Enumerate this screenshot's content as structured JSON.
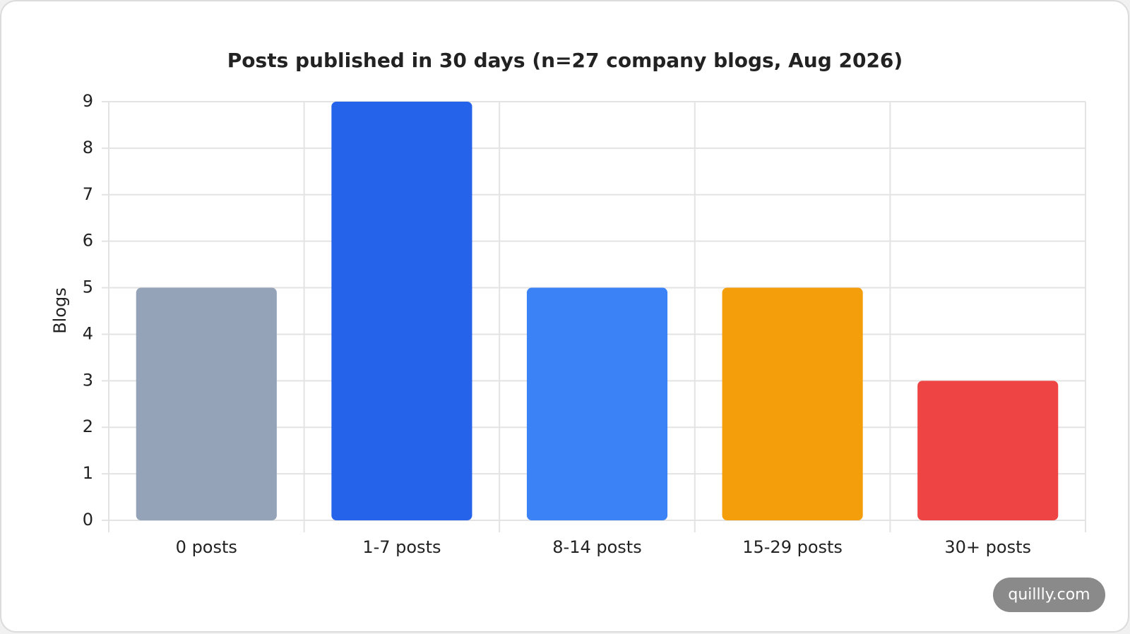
{
  "chart_data": {
    "type": "bar",
    "title": "Posts published in 30 days (n=27 company blogs, Aug 2026)",
    "y_label": "Blogs",
    "categories": [
      "0 posts",
      "1-7 posts",
      "8-14 posts",
      "15-29 posts",
      "30+ posts"
    ],
    "values": [
      5,
      9,
      5,
      5,
      3
    ],
    "colors": [
      "#94a3b8",
      "#2563eb",
      "#3b82f6",
      "#f59e0b",
      "#ef4444"
    ],
    "ylim": [
      0,
      9
    ],
    "yticks": [
      0,
      1,
      2,
      3,
      4,
      5,
      6,
      7,
      8,
      9
    ],
    "grid": true,
    "watermark": "quillly.com"
  }
}
